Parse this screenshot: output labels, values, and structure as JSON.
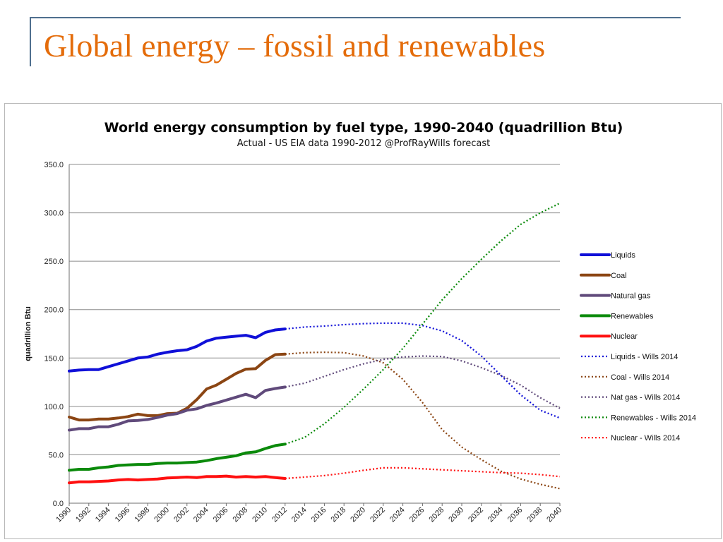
{
  "slide": {
    "title": "Global energy – fossil and renewables"
  },
  "chart_data": {
    "type": "line",
    "title": "World energy consumption by fuel type, 1990-2040 (quadrillion Btu)",
    "subtitle": "Actual - US EIA data 1990-2012   @ProfRayWills forecast",
    "xlabel": "",
    "ylabel": "quadrillion Btu",
    "xlim": [
      1990,
      2040
    ],
    "ylim": [
      0,
      350
    ],
    "y_ticks": [
      "0.0",
      "50.0",
      "100.0",
      "150.0",
      "200.0",
      "250.0",
      "300.0",
      "350.0"
    ],
    "x_ticks": [
      "1990",
      "1992",
      "1994",
      "1996",
      "1998",
      "2000",
      "2002",
      "2004",
      "2006",
      "2008",
      "2010",
      "2012",
      "2014",
      "2016",
      "2018",
      "2020",
      "2022",
      "2024",
      "2026",
      "2028",
      "2030",
      "2032",
      "2034",
      "2036",
      "2038",
      "2040"
    ],
    "grid": "horizontal",
    "legend_position": "right",
    "series": [
      {
        "name": "Liquids",
        "style": "solid",
        "color": "#1010d8",
        "x": [
          1990,
          1991,
          1992,
          1993,
          1994,
          1995,
          1996,
          1997,
          1998,
          1999,
          2000,
          2001,
          2002,
          2003,
          2004,
          2005,
          2006,
          2007,
          2008,
          2009,
          2010,
          2011,
          2012
        ],
        "y": [
          136.5,
          137.5,
          138,
          138,
          141,
          144,
          147,
          150,
          151,
          154,
          156,
          157.5,
          158.5,
          162,
          167.5,
          170.5,
          171.5,
          172.5,
          173.5,
          171,
          176.5,
          179,
          180
        ]
      },
      {
        "name": "Coal",
        "style": "solid",
        "color": "#8b4513",
        "x": [
          1990,
          1991,
          1992,
          1993,
          1994,
          1995,
          1996,
          1997,
          1998,
          1999,
          2000,
          2001,
          2002,
          2003,
          2004,
          2005,
          2006,
          2007,
          2008,
          2009,
          2010,
          2011,
          2012
        ],
        "y": [
          89,
          86,
          86,
          87,
          87,
          88,
          89.5,
          92,
          90.5,
          90.5,
          92.5,
          93,
          98,
          107,
          118,
          122,
          128,
          134,
          138.5,
          139,
          147.5,
          153.5,
          154
        ]
      },
      {
        "name": "Natural gas",
        "style": "solid",
        "color": "#604a7b",
        "x": [
          1990,
          1991,
          1992,
          1993,
          1994,
          1995,
          1996,
          1997,
          1998,
          1999,
          2000,
          2001,
          2002,
          2003,
          2004,
          2005,
          2006,
          2007,
          2008,
          2009,
          2010,
          2011,
          2012
        ],
        "y": [
          75.5,
          77,
          77,
          79,
          79,
          81.5,
          85,
          85.5,
          86.5,
          88.5,
          91,
          92.5,
          96,
          97.5,
          101,
          103.5,
          106.5,
          109.5,
          112.5,
          109,
          116.5,
          118.5,
          120
        ]
      },
      {
        "name": "Renewables",
        "style": "solid",
        "color": "#0b8a0b",
        "x": [
          1990,
          1991,
          1992,
          1993,
          1994,
          1995,
          1996,
          1997,
          1998,
          1999,
          2000,
          2001,
          2002,
          2003,
          2004,
          2005,
          2006,
          2007,
          2008,
          2009,
          2010,
          2011,
          2012
        ],
        "y": [
          34,
          35,
          35,
          36.5,
          37.5,
          39,
          39.5,
          40,
          40,
          41,
          41.5,
          41.5,
          42,
          42.5,
          44,
          46,
          47.5,
          49,
          52,
          53,
          56.5,
          59.5,
          61
        ]
      },
      {
        "name": "Nuclear",
        "style": "solid",
        "color": "#ff1010",
        "x": [
          1990,
          1991,
          1992,
          1993,
          1994,
          1995,
          1996,
          1997,
          1998,
          1999,
          2000,
          2001,
          2002,
          2003,
          2004,
          2005,
          2006,
          2007,
          2008,
          2009,
          2010,
          2011,
          2012
        ],
        "y": [
          21,
          22,
          22,
          22.5,
          23,
          24,
          24.5,
          24,
          24.5,
          25,
          26,
          26.5,
          27,
          26.5,
          27.5,
          27.5,
          28,
          27,
          27.5,
          27,
          27.5,
          26.5,
          25.5
        ]
      },
      {
        "name": "Liquids - Wills 2014",
        "style": "dotted",
        "color": "#1010d8",
        "x": [
          2012,
          2014,
          2016,
          2018,
          2020,
          2022,
          2024,
          2026,
          2028,
          2030,
          2032,
          2034,
          2036,
          2038,
          2040
        ],
        "y": [
          180,
          182,
          183,
          184.5,
          185.5,
          186,
          186,
          183.5,
          178,
          168,
          152,
          132,
          112,
          96,
          88
        ]
      },
      {
        "name": "Coal - Wills 2014",
        "style": "dotted",
        "color": "#8b4513",
        "x": [
          2012,
          2014,
          2016,
          2018,
          2020,
          2022,
          2024,
          2026,
          2028,
          2030,
          2032,
          2034,
          2036,
          2038,
          2040
        ],
        "y": [
          154,
          155.5,
          156,
          155.5,
          152,
          145,
          128,
          104,
          76,
          58,
          45,
          33,
          25,
          19.5,
          15
        ]
      },
      {
        "name": "Nat gas - Wills 2014",
        "style": "dotted",
        "color": "#604a7b",
        "x": [
          2012,
          2014,
          2016,
          2018,
          2020,
          2022,
          2024,
          2026,
          2028,
          2030,
          2032,
          2034,
          2036,
          2038,
          2040
        ],
        "y": [
          120,
          124,
          131,
          138,
          144,
          148.5,
          151,
          152,
          151.5,
          147,
          140,
          132,
          122,
          109,
          98
        ]
      },
      {
        "name": "Renewables - Wills 2014",
        "style": "dotted",
        "color": "#0b8a0b",
        "x": [
          2012,
          2014,
          2016,
          2018,
          2020,
          2022,
          2024,
          2026,
          2028,
          2030,
          2032,
          2034,
          2036,
          2038,
          2040
        ],
        "y": [
          61,
          68,
          82,
          99,
          118,
          138,
          160,
          185,
          210,
          232,
          252,
          271,
          288,
          300,
          310
        ]
      },
      {
        "name": "Nuclear - Wills 2014",
        "style": "dotted",
        "color": "#ff1010",
        "x": [
          2012,
          2014,
          2016,
          2018,
          2020,
          2022,
          2024,
          2026,
          2028,
          2030,
          2032,
          2034,
          2036,
          2038,
          2040
        ],
        "y": [
          25.5,
          27,
          28.5,
          31,
          34,
          36.5,
          36.5,
          35.5,
          34.5,
          33.5,
          32.5,
          31.5,
          31,
          29.5,
          27.5
        ]
      }
    ]
  }
}
